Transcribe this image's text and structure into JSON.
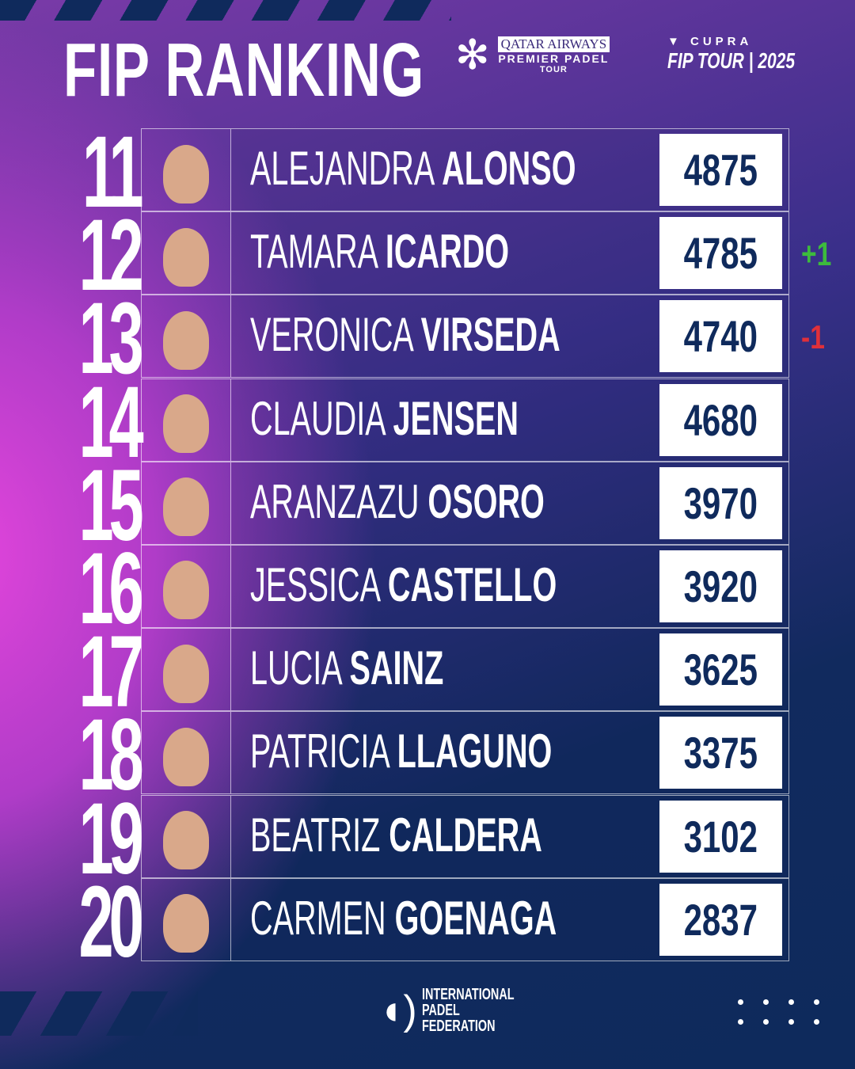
{
  "header": {
    "title": "FIP RANKING",
    "sponsor1": {
      "line1": "QATAR AIRWAYS",
      "line2": "PREMIER PADEL",
      "line3": "TOUR"
    },
    "sponsor2": {
      "brand": "CUPRA",
      "tour": "FIP TOUR | 2025"
    }
  },
  "colors": {
    "pink": "#e445dc",
    "navy": "#0f2a5c",
    "up": "#3dbb3d",
    "down": "#e0303a"
  },
  "rankings": [
    {
      "rank": "11",
      "first": "ALEJANDRA",
      "last": "ALONSO",
      "points": "4875",
      "change": ""
    },
    {
      "rank": "12",
      "first": "TAMARA",
      "last": "ICARDO",
      "points": "4785",
      "change": "+1"
    },
    {
      "rank": "13",
      "first": "VERONICA",
      "last": "VIRSEDA",
      "points": "4740",
      "change": "-1"
    },
    {
      "rank": "14",
      "first": "CLAUDIA",
      "last": "JENSEN",
      "points": "4680",
      "change": ""
    },
    {
      "rank": "15",
      "first": "ARANZAZU",
      "last": "OSORO",
      "points": "3970",
      "change": ""
    },
    {
      "rank": "16",
      "first": "JESSICA",
      "last": "CASTELLO",
      "points": "3920",
      "change": ""
    },
    {
      "rank": "17",
      "first": "LUCIA",
      "last": "SAINZ",
      "points": "3625",
      "change": ""
    },
    {
      "rank": "18",
      "first": "PATRICIA",
      "last": "LLAGUNO",
      "points": "3375",
      "change": ""
    },
    {
      "rank": "19",
      "first": "BEATRIZ",
      "last": "CALDERA",
      "points": "3102",
      "change": ""
    },
    {
      "rank": "20",
      "first": "CARMEN",
      "last": "GOENAGA",
      "points": "2837",
      "change": ""
    }
  ],
  "footer": {
    "org": "INTERNATIONAL PADEL FEDERATION",
    "org_lines": [
      "INTERNATIONAL",
      "PADEL",
      "FEDERATION"
    ]
  }
}
